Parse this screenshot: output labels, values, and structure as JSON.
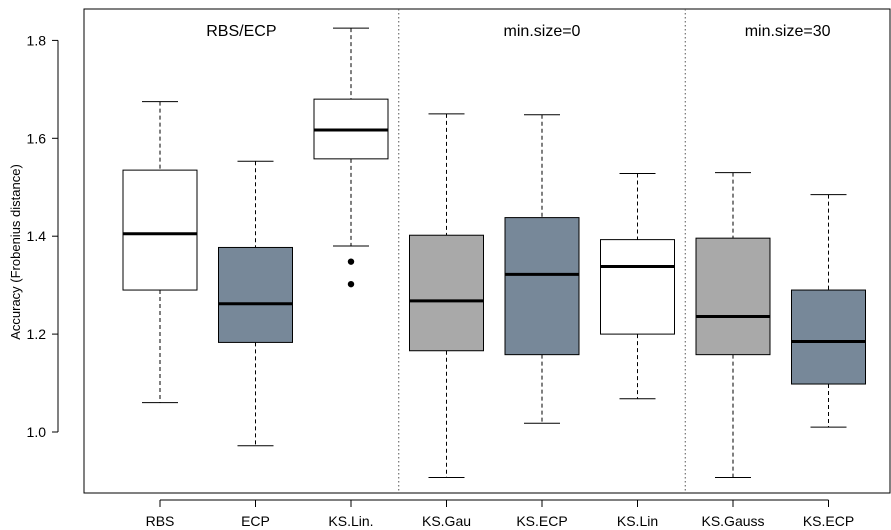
{
  "chart_data": {
    "type": "boxplot",
    "ylabel": "Accuracy (Frobenius distance)",
    "ylim": [
      0.9,
      1.87
    ],
    "yticks": [
      "1.0",
      "1.2",
      "1.4",
      "1.6",
      "1.8"
    ],
    "panels": [
      "RBS/ECP",
      "min.size=0",
      "min.size=30"
    ],
    "boxes": [
      {
        "label": "RBS",
        "color": "#ffffff",
        "whisker_low": 1.06,
        "q1": 1.29,
        "median": 1.405,
        "q3": 1.535,
        "whisker_high": 1.675,
        "outliers": []
      },
      {
        "label": "ECP",
        "color": "#778899",
        "whisker_low": 0.972,
        "q1": 1.183,
        "median": 1.262,
        "q3": 1.377,
        "whisker_high": 1.553,
        "outliers": []
      },
      {
        "label": "KS.Lin.",
        "color": "#ffffff",
        "whisker_low": 1.38,
        "q1": 1.558,
        "median": 1.617,
        "q3": 1.68,
        "whisker_high": 1.825,
        "outliers": [
          1.348,
          1.302
        ]
      },
      {
        "label": "KS.Gau",
        "color": "#a9a9a9",
        "whisker_low": 0.907,
        "q1": 1.166,
        "median": 1.268,
        "q3": 1.402,
        "whisker_high": 1.65,
        "outliers": []
      },
      {
        "label": "KS.ECP",
        "color": "#778899",
        "whisker_low": 1.018,
        "q1": 1.158,
        "median": 1.322,
        "q3": 1.438,
        "whisker_high": 1.648,
        "outliers": []
      },
      {
        "label": "KS.Lin",
        "color": "#ffffff",
        "whisker_low": 1.068,
        "q1": 1.2,
        "median": 1.338,
        "q3": 1.393,
        "whisker_high": 1.528,
        "outliers": []
      },
      {
        "label": "KS.Gauss",
        "color": "#a9a9a9",
        "whisker_low": 0.907,
        "q1": 1.158,
        "median": 1.236,
        "q3": 1.396,
        "whisker_high": 1.53,
        "outliers": []
      },
      {
        "label": "KS.ECP",
        "color": "#778899",
        "whisker_low": 1.01,
        "q1": 1.098,
        "median": 1.185,
        "q3": 1.29,
        "whisker_high": 1.485,
        "outliers": []
      }
    ],
    "panel_dividers_after": [
      2,
      5
    ],
    "grid": false
  }
}
